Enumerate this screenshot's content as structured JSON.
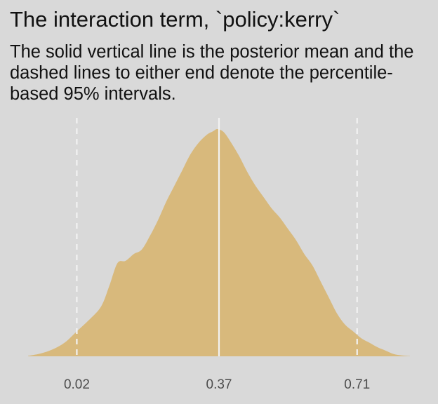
{
  "title": "The interaction term, `policy:kerry`",
  "subtitle": "The solid vertical line is the posterior mean and the dashed lines to either end denote the percentile- based 95% intervals.",
  "colors": {
    "background": "#d9d9d9",
    "density_fill": "#d8b97c",
    "reference_lines": "#f2f2f2",
    "tick_text": "#4d4d4d"
  },
  "chart_data": {
    "type": "area",
    "title": "The interaction term, `policy:kerry`",
    "subtitle": "The solid vertical line is the posterior mean and the dashed lines to either end denote the percentile- based 95% intervals.",
    "xlabel": "",
    "ylabel": "",
    "grid": false,
    "legend": "none",
    "xlim": [
      -0.1,
      0.84
    ],
    "ylim": [
      0,
      1
    ],
    "x_ticks": [
      0.02,
      0.37,
      0.71
    ],
    "x_tick_labels": [
      "0.02",
      "0.37",
      "0.71"
    ],
    "mean": 0.37,
    "interval_95": [
      0.02,
      0.71
    ],
    "series": [
      {
        "x": [
          -0.1,
          -0.07,
          -0.04,
          -0.01,
          0.02,
          0.05,
          0.08,
          0.1,
          0.12,
          0.14,
          0.16,
          0.18,
          0.2,
          0.22,
          0.24,
          0.26,
          0.28,
          0.3,
          0.32,
          0.34,
          0.355,
          0.365,
          0.375,
          0.385,
          0.4,
          0.42,
          0.44,
          0.46,
          0.48,
          0.5,
          0.52,
          0.54,
          0.56,
          0.58,
          0.6,
          0.62,
          0.64,
          0.66,
          0.68,
          0.7,
          0.72,
          0.74,
          0.76,
          0.78,
          0.8,
          0.82,
          0.84
        ],
        "y": [
          0.002,
          0.012,
          0.03,
          0.06,
          0.11,
          0.16,
          0.22,
          0.31,
          0.41,
          0.42,
          0.45,
          0.47,
          0.53,
          0.6,
          0.68,
          0.75,
          0.82,
          0.89,
          0.94,
          0.975,
          0.99,
          1.0,
          0.995,
          0.98,
          0.94,
          0.88,
          0.81,
          0.75,
          0.7,
          0.65,
          0.61,
          0.56,
          0.51,
          0.45,
          0.4,
          0.33,
          0.26,
          0.19,
          0.14,
          0.11,
          0.08,
          0.06,
          0.04,
          0.025,
          0.01,
          0.004,
          0.001
        ]
      }
    ]
  }
}
